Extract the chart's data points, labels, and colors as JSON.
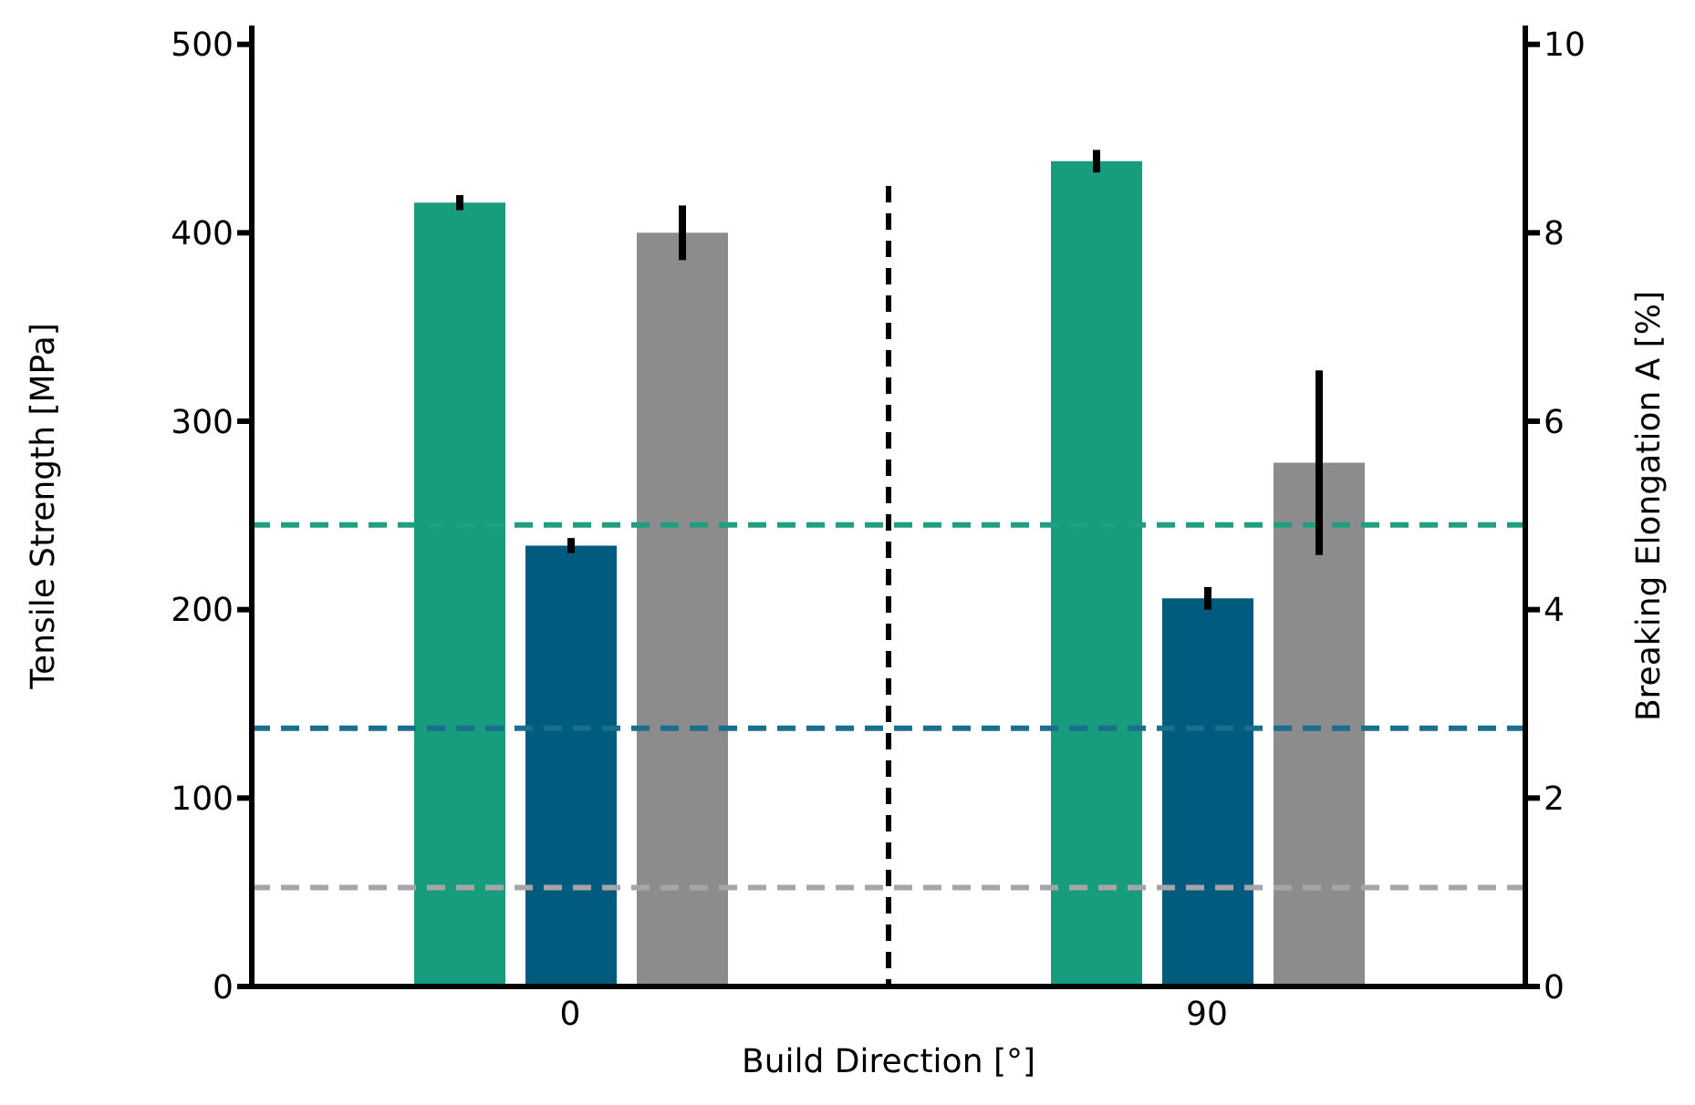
{
  "chart_data": {
    "type": "bar",
    "xlabel": "Build Direction [°]",
    "ylabel": "Tensile Strength [MPa]",
    "y2label": "Breaking Elongation  A [%]",
    "categories": [
      "0",
      "90"
    ],
    "series": [
      {
        "color": "#179c7d",
        "values": [
          416,
          438
        ],
        "errors": [
          4,
          6
        ]
      },
      {
        "color": "#005b7f",
        "values": [
          234,
          206
        ],
        "errors": [
          4,
          6
        ]
      },
      {
        "color": "#8c8c8c",
        "values": [
          8.0,
          5.56
        ],
        "errors": [
          0.29,
          0.98
        ],
        "axis": "y2"
      }
    ],
    "ylim": [
      0,
      510
    ],
    "yticks": [
      0,
      100,
      200,
      300,
      400,
      500
    ],
    "y2lim": [
      0,
      10.2
    ],
    "y2ticks": [
      0,
      2,
      4,
      6,
      8,
      10
    ],
    "ref_lines": [
      {
        "axis": "y",
        "value": 245,
        "color": "#1f9e80",
        "line_style": "dashed"
      },
      {
        "axis": "y",
        "value": 137,
        "color": "#1a6f8f",
        "line_style": "dashed"
      },
      {
        "axis": "y2",
        "value": 1.05,
        "color": "#a6a6a6",
        "line_style": "dashed"
      }
    ],
    "grid": false,
    "legend": false
  }
}
